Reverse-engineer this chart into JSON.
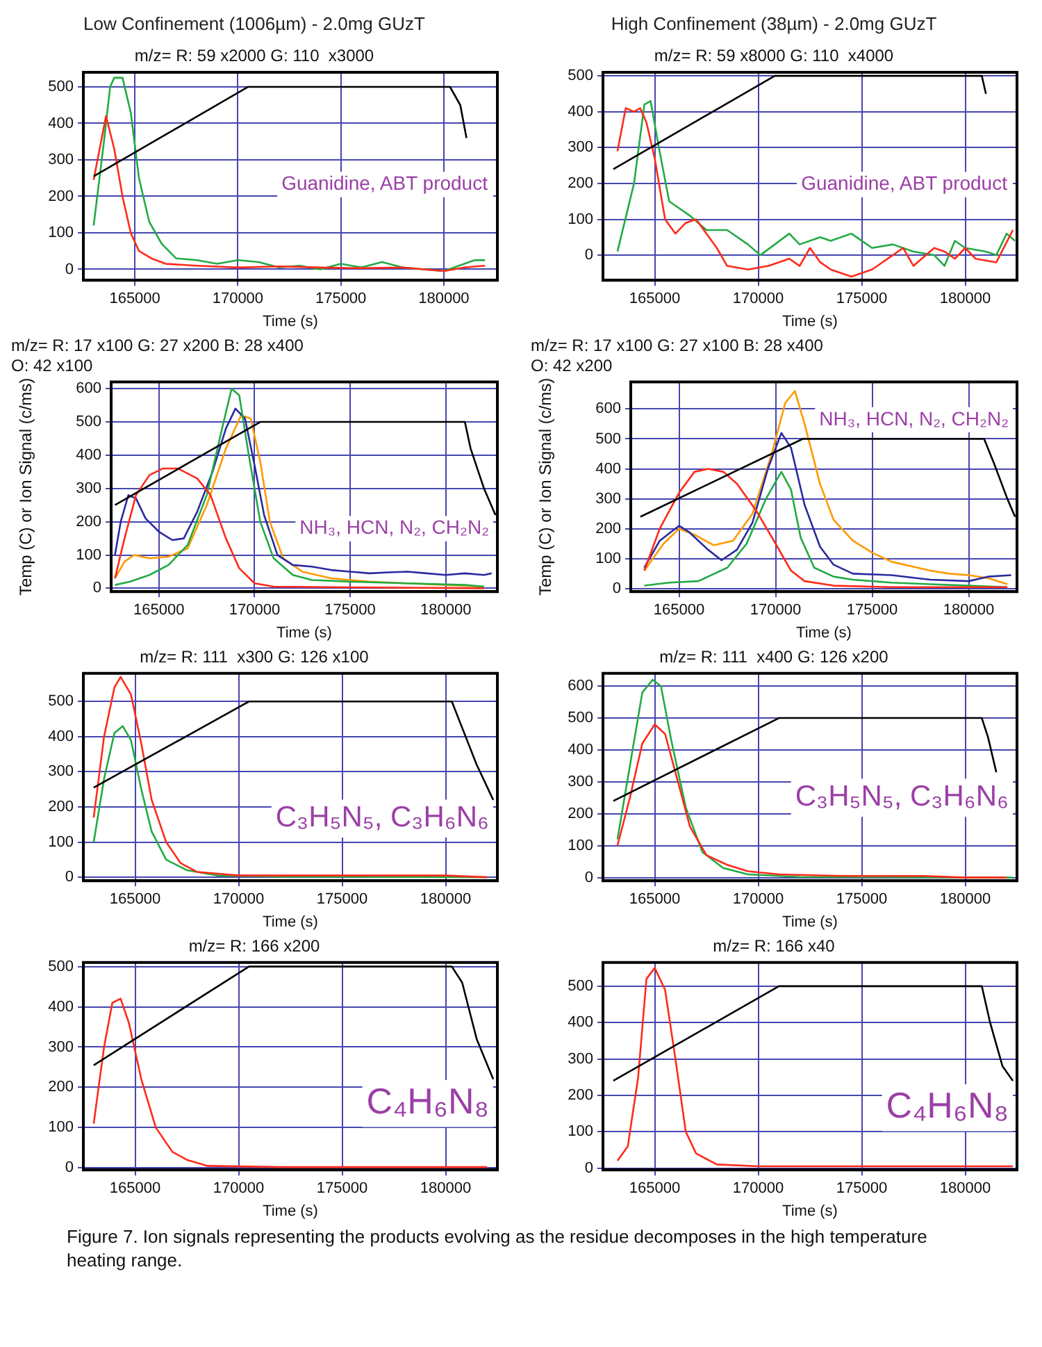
{
  "chart_data": [
    {
      "type": "line",
      "title": "Low Confinement (1006µm) - 2.0mg GUzT",
      "subtitle": "m/z= R: 59 x2000 G: 110  x3000",
      "xlabel": "Time (s)",
      "xlim": [
        162500,
        182600
      ],
      "xticks": [
        165000,
        170000,
        175000,
        180000
      ],
      "ylim": [
        -30,
        540
      ],
      "yticks": [
        0,
        100,
        200,
        300,
        400,
        500
      ],
      "grid": true,
      "annotations": [
        "Guanidine, ABT product"
      ],
      "series": [
        {
          "color": "#000000",
          "x": [
            163000,
            170500,
            180300,
            180800,
            181100
          ],
          "values": [
            255,
            500,
            500,
            450,
            360
          ]
        },
        {
          "color": "#ff2a1a",
          "x": [
            163000,
            163600,
            164000,
            164400,
            164800,
            165200,
            165800,
            166500,
            168000,
            170000,
            172000,
            174000,
            176000,
            178000,
            180000,
            181000,
            182000
          ],
          "values": [
            245,
            420,
            330,
            200,
            100,
            50,
            30,
            15,
            10,
            5,
            8,
            5,
            3,
            5,
            -5,
            5,
            10
          ]
        },
        {
          "color": "#22aa44",
          "x": [
            163000,
            163500,
            163800,
            164000,
            164400,
            164800,
            165200,
            165700,
            166300,
            167000,
            168000,
            169000,
            170000,
            171000,
            172000,
            173000,
            174000,
            175000,
            176000,
            177000,
            178000,
            179000,
            180000,
            181000,
            181500,
            182000
          ],
          "values": [
            120,
            350,
            500,
            525,
            525,
            430,
            250,
            130,
            70,
            30,
            25,
            15,
            25,
            20,
            5,
            10,
            0,
            15,
            5,
            20,
            5,
            0,
            -5,
            15,
            25,
            25
          ]
        }
      ]
    },
    {
      "type": "line",
      "title": "High Confinement (38µm) - 2.0mg GUzT",
      "subtitle": "m/z= R: 59 x8000 G: 110  x4000",
      "xlabel": "Time (s)",
      "xlim": [
        162500,
        182500
      ],
      "xticks": [
        165000,
        170000,
        175000,
        180000
      ],
      "ylim": [
        -70,
        510
      ],
      "yticks": [
        0,
        100,
        200,
        300,
        400,
        500
      ],
      "grid": true,
      "annotations": [
        "Guanidine, ABT product"
      ],
      "series": [
        {
          "color": "#000000",
          "x": [
            163000,
            170800,
            180800,
            181000
          ],
          "values": [
            240,
            500,
            500,
            450
          ]
        },
        {
          "color": "#ff2a1a",
          "x": [
            163200,
            163600,
            164000,
            164300,
            164600,
            165000,
            165500,
            166000,
            166500,
            167000,
            167500,
            168000,
            168500,
            169500,
            170500,
            171500,
            172000,
            172500,
            173000,
            173500,
            174500,
            175500,
            176500,
            177000,
            177500,
            178500,
            179000,
            179500,
            180000,
            180500,
            181500,
            182300
          ],
          "values": [
            290,
            410,
            400,
            410,
            370,
            270,
            100,
            60,
            90,
            100,
            60,
            20,
            -30,
            -40,
            -30,
            -10,
            -30,
            20,
            -20,
            -40,
            -60,
            -40,
            0,
            20,
            -30,
            20,
            10,
            -10,
            20,
            -10,
            -20,
            70
          ]
        },
        {
          "color": "#22aa44",
          "x": [
            163200,
            164000,
            164500,
            164800,
            165200,
            165700,
            166200,
            166700,
            167500,
            168500,
            169500,
            170100,
            170800,
            171500,
            172000,
            173000,
            173500,
            174500,
            175500,
            176500,
            177500,
            178500,
            179000,
            179500,
            180000,
            181000,
            181500,
            182000,
            182400
          ],
          "values": [
            10,
            200,
            420,
            430,
            300,
            150,
            130,
            110,
            70,
            70,
            30,
            0,
            30,
            60,
            30,
            50,
            40,
            60,
            20,
            30,
            10,
            0,
            -30,
            40,
            20,
            10,
            0,
            60,
            40
          ]
        }
      ]
    },
    {
      "type": "line",
      "subtitle": "m/z= R: 17 x100 G: 27 x200 B: 28 x400\nO: 42 x100",
      "xlabel": "Time (s)",
      "ylabel": "Temp (C) or Ion Signal (c/ms)",
      "xlim": [
        162500,
        182700
      ],
      "xticks": [
        165000,
        170000,
        175000,
        180000
      ],
      "ylim": [
        -10,
        620
      ],
      "yticks": [
        0,
        100,
        200,
        300,
        400,
        500,
        600
      ],
      "grid": true,
      "annotations": [
        "NH₃, HCN, N₂, CH₂N₂"
      ],
      "series": [
        {
          "color": "#000000",
          "x": [
            162700,
            170300,
            181000,
            181300,
            182000,
            182600
          ],
          "values": [
            250,
            500,
            500,
            420,
            300,
            220
          ]
        },
        {
          "color": "#ff2a1a",
          "x": [
            162700,
            163200,
            163800,
            164500,
            165200,
            166000,
            167000,
            167700,
            168500,
            169200,
            170000,
            171000,
            175000,
            182000
          ],
          "values": [
            30,
            150,
            280,
            340,
            360,
            360,
            330,
            280,
            150,
            60,
            15,
            5,
            3,
            0
          ]
        },
        {
          "color": "#22aa44",
          "x": [
            162700,
            163500,
            164500,
            165500,
            166500,
            167500,
            168300,
            168800,
            169200,
            169700,
            170300,
            171000,
            172000,
            173000,
            175000,
            178000,
            181000,
            182000
          ],
          "values": [
            10,
            20,
            40,
            70,
            130,
            280,
            480,
            600,
            580,
            400,
            200,
            90,
            40,
            25,
            20,
            15,
            10,
            5
          ]
        },
        {
          "color": "#2a2aa0",
          "x": [
            162700,
            163000,
            163400,
            163800,
            164300,
            165000,
            165700,
            166300,
            167000,
            167800,
            168500,
            169000,
            169500,
            170000,
            170500,
            171200,
            172000,
            173000,
            174000,
            175000,
            176000,
            177000,
            178000,
            179000,
            180000,
            181000,
            182000,
            182400
          ],
          "values": [
            100,
            200,
            280,
            270,
            210,
            170,
            145,
            150,
            230,
            350,
            480,
            540,
            510,
            370,
            220,
            100,
            70,
            65,
            55,
            50,
            45,
            48,
            50,
            45,
            40,
            45,
            40,
            45
          ]
        },
        {
          "color": "#ff9900",
          "x": [
            162700,
            163200,
            163700,
            164500,
            165500,
            166500,
            167500,
            168500,
            169300,
            169800,
            170300,
            170800,
            171500,
            172500,
            174000,
            176000,
            178000,
            180000,
            182000
          ],
          "values": [
            30,
            80,
            100,
            90,
            95,
            120,
            250,
            420,
            520,
            510,
            380,
            200,
            90,
            50,
            30,
            20,
            15,
            10,
            5
          ]
        }
      ]
    },
    {
      "type": "line",
      "subtitle": "m/z= R: 17 x100 G: 27 x100 B: 28 x400\nO: 42 x200",
      "xlabel": "Time (s)",
      "ylabel": "Temp (C) or Ion Signal (c/ms)",
      "xlim": [
        162500,
        182500
      ],
      "xticks": [
        165000,
        170000,
        175000,
        180000
      ],
      "ylim": [
        -10,
        690
      ],
      "yticks": [
        0,
        100,
        200,
        300,
        400,
        500,
        600
      ],
      "grid": true,
      "annotations": [
        "NH₃, HCN, N₂, CH₂N₂"
      ],
      "series": [
        {
          "color": "#000000",
          "x": [
            163000,
            171400,
            180800,
            181300,
            182000,
            182400
          ],
          "values": [
            240,
            500,
            500,
            420,
            300,
            240
          ]
        },
        {
          "color": "#ff2a1a",
          "x": [
            163200,
            164000,
            165000,
            165800,
            166500,
            167300,
            168000,
            169000,
            170000,
            170800,
            171500,
            173000,
            176000,
            182000
          ],
          "values": [
            60,
            200,
            320,
            390,
            400,
            390,
            350,
            260,
            150,
            60,
            25,
            10,
            5,
            5
          ]
        },
        {
          "color": "#22aa44",
          "x": [
            163200,
            164500,
            166000,
            167500,
            168500,
            169500,
            170300,
            170800,
            171300,
            172000,
            173000,
            174000,
            176000,
            178000,
            180000,
            182000
          ],
          "values": [
            10,
            20,
            25,
            70,
            150,
            300,
            390,
            330,
            170,
            70,
            40,
            30,
            20,
            15,
            10,
            5
          ]
        },
        {
          "color": "#2a2aa0",
          "x": [
            163200,
            164000,
            165000,
            165500,
            166500,
            167200,
            168000,
            168800,
            169600,
            170300,
            170800,
            171500,
            172300,
            173000,
            174000,
            176000,
            178000,
            180000,
            181000,
            182200
          ],
          "values": [
            70,
            160,
            210,
            190,
            130,
            95,
            130,
            220,
            400,
            520,
            470,
            280,
            140,
            80,
            50,
            45,
            30,
            25,
            40,
            45
          ]
        },
        {
          "color": "#ff9900",
          "x": [
            163200,
            164200,
            165000,
            165800,
            166800,
            167800,
            168800,
            169800,
            170500,
            171000,
            171500,
            172300,
            173000,
            174000,
            175000,
            176000,
            177000,
            178000,
            179000,
            180000,
            181000,
            182000
          ],
          "values": [
            60,
            150,
            200,
            180,
            145,
            160,
            250,
            450,
            620,
            660,
            550,
            350,
            230,
            160,
            120,
            90,
            75,
            60,
            50,
            45,
            35,
            15
          ]
        }
      ]
    },
    {
      "type": "line",
      "subtitle": "m/z= R: 111  x300 G: 126 x100",
      "xlabel": "Time (s)",
      "xlim": [
        162500,
        182500
      ],
      "xticks": [
        165000,
        170000,
        175000,
        180000
      ],
      "ylim": [
        -10,
        580
      ],
      "yticks": [
        0,
        100,
        200,
        300,
        400,
        500
      ],
      "grid": true,
      "annotations": [
        "C₃H₅N₅, C₃H₆N₆"
      ],
      "series": [
        {
          "color": "#000000",
          "x": [
            163000,
            170500,
            180300,
            180700,
            181500,
            182300
          ],
          "values": [
            255,
            500,
            500,
            440,
            320,
            220
          ]
        },
        {
          "color": "#ff2a1a",
          "x": [
            163000,
            163500,
            164000,
            164300,
            164800,
            165300,
            165800,
            166500,
            167200,
            168000,
            170000,
            173000,
            176000,
            180000,
            182000
          ],
          "values": [
            170,
            400,
            540,
            570,
            520,
            380,
            220,
            100,
            40,
            15,
            5,
            5,
            5,
            5,
            0
          ]
        },
        {
          "color": "#22aa44",
          "x": [
            163000,
            163500,
            164000,
            164400,
            164800,
            165300,
            165800,
            166500,
            167500,
            169000,
            172000,
            182000
          ],
          "values": [
            100,
            280,
            410,
            430,
            390,
            250,
            130,
            50,
            20,
            5,
            2,
            0
          ]
        }
      ]
    },
    {
      "type": "line",
      "subtitle": "m/z= R: 111  x400 G: 126 x200",
      "xlabel": "Time (s)",
      "xlim": [
        162500,
        182500
      ],
      "xticks": [
        165000,
        170000,
        175000,
        180000
      ],
      "ylim": [
        -10,
        640
      ],
      "yticks": [
        0,
        100,
        200,
        300,
        400,
        500,
        600
      ],
      "grid": true,
      "annotations": [
        "C₃H₅N₅, C₃H₆N₆"
      ],
      "series": [
        {
          "color": "#000000",
          "x": [
            163000,
            171000,
            180800,
            181100,
            181500
          ],
          "values": [
            240,
            500,
            500,
            440,
            330
          ]
        },
        {
          "color": "#ff2a1a",
          "x": [
            163200,
            163800,
            164400,
            165000,
            165500,
            166000,
            166700,
            167500,
            168500,
            169500,
            171000,
            174000,
            178000,
            180000,
            182000
          ],
          "values": [
            100,
            250,
            420,
            480,
            450,
            330,
            160,
            70,
            40,
            20,
            10,
            5,
            5,
            0,
            0
          ]
        },
        {
          "color": "#22aa44",
          "x": [
            163200,
            163800,
            164400,
            164900,
            165300,
            165800,
            166500,
            167300,
            168300,
            169500,
            172000,
            182300
          ],
          "values": [
            120,
            350,
            580,
            620,
            600,
            430,
            220,
            80,
            30,
            10,
            2,
            0
          ]
        }
      ]
    },
    {
      "type": "line",
      "subtitle": "m/z= R: 166 x200",
      "xlabel": "Time (s)",
      "xlim": [
        162500,
        182500
      ],
      "xticks": [
        165000,
        170000,
        175000,
        180000
      ],
      "ylim": [
        -5,
        510
      ],
      "yticks": [
        0,
        100,
        200,
        300,
        400,
        500
      ],
      "grid": true,
      "annotations": [
        "C₄H₆N₈"
      ],
      "series": [
        {
          "color": "#000000",
          "x": [
            163000,
            170500,
            180300,
            180800,
            181500,
            182300
          ],
          "values": [
            255,
            500,
            500,
            460,
            320,
            220
          ]
        },
        {
          "color": "#ff2a1a",
          "x": [
            163000,
            163500,
            163900,
            164300,
            164700,
            165300,
            166000,
            166800,
            167500,
            168500,
            172000,
            182000
          ],
          "values": [
            110,
            300,
            410,
            420,
            360,
            220,
            100,
            40,
            20,
            5,
            2,
            2
          ]
        }
      ]
    },
    {
      "type": "line",
      "subtitle": "m/z= R: 166 x40",
      "xlabel": "Time (s)",
      "xlim": [
        162500,
        182500
      ],
      "xticks": [
        165000,
        170000,
        175000,
        180000
      ],
      "ylim": [
        -5,
        565
      ],
      "yticks": [
        0,
        100,
        200,
        300,
        400,
        500
      ],
      "grid": true,
      "annotations": [
        "C₄H₆N₈",
        "Figure 7. Ion signals representing the products evolving as the residue decomposes in the high temperature heating range."
      ],
      "series": [
        {
          "color": "#000000",
          "x": [
            163000,
            171000,
            180800,
            181200,
            181800,
            182300
          ],
          "values": [
            240,
            500,
            500,
            400,
            280,
            240
          ]
        },
        {
          "color": "#ff2a1a",
          "x": [
            163200,
            163700,
            164200,
            164600,
            165000,
            165500,
            166000,
            166500,
            167000,
            168000,
            170000,
            182300
          ],
          "values": [
            20,
            60,
            250,
            520,
            550,
            490,
            300,
            100,
            40,
            10,
            5,
            5
          ]
        }
      ]
    }
  ]
}
